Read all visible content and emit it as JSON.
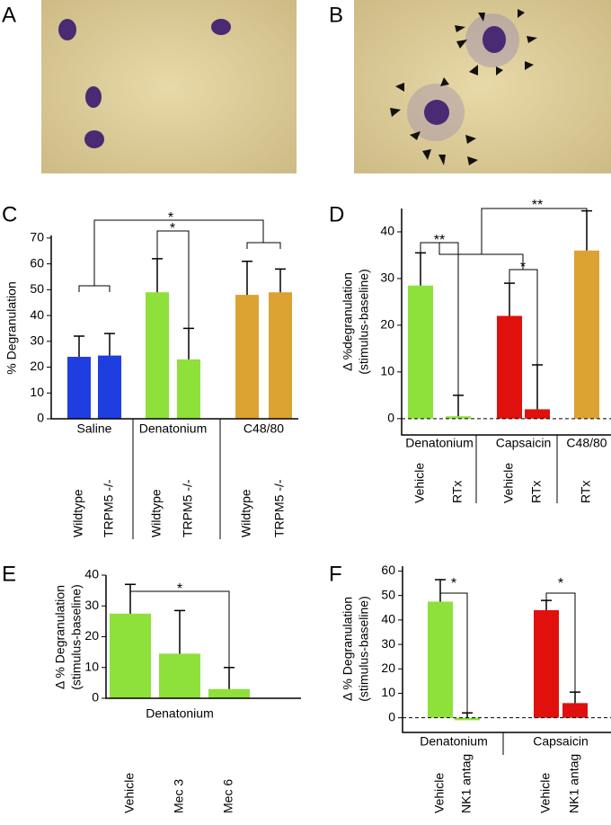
{
  "image_panels": [
    "A",
    "B"
  ],
  "chart_data": [
    {
      "panel": "C",
      "type": "bar",
      "ylabel": [
        "% Degranulation"
      ],
      "ylim": [
        0,
        71
      ],
      "yticks": [
        0,
        10,
        20,
        30,
        40,
        50,
        60,
        70
      ],
      "groups": [
        {
          "label": "Saline",
          "color": "#1f3ee0",
          "categories": [
            "Wildtype",
            "TRPM5 -/-"
          ],
          "values": [
            24,
            24.5
          ],
          "errors": [
            8,
            8.5
          ]
        },
        {
          "label": "Denatonium",
          "color": "#8ee03a",
          "categories": [
            "Wildtype",
            "TRPM5 -/-"
          ],
          "values": [
            49,
            23
          ],
          "errors": [
            13,
            12
          ]
        },
        {
          "label": "C48/80",
          "color": "#dca232",
          "categories": [
            "Wildtype",
            "TRPM5 -/-"
          ],
          "values": [
            48,
            49
          ],
          "errors": [
            13,
            9
          ]
        }
      ],
      "annotations": [
        "*",
        "*"
      ]
    },
    {
      "panel": "D",
      "type": "bar",
      "ylabel": [
        "Δ %degranulation",
        "(stimulus-baseline)"
      ],
      "ylim": [
        -3.5,
        45
      ],
      "yticks": [
        0,
        10,
        20,
        30,
        40
      ],
      "zero_line": true,
      "groups": [
        {
          "label": "Denatonium",
          "color": "#8ee03a",
          "categories": [
            "Vehicle",
            "RTx"
          ],
          "values": [
            28.5,
            0.5
          ],
          "errors": [
            7,
            4.5
          ]
        },
        {
          "label": "Capsaicin",
          "color": "#e0100c",
          "categories": [
            "Vehicle",
            "RTx"
          ],
          "values": [
            22,
            2
          ],
          "errors": [
            7,
            9.5
          ]
        },
        {
          "label": "C48/80",
          "color": "#dca232",
          "categories": [
            "RTx"
          ],
          "values": [
            36
          ],
          "errors": [
            8.5
          ]
        }
      ],
      "annotations": [
        "**",
        "*",
        "**"
      ]
    },
    {
      "panel": "E",
      "type": "bar",
      "ylabel": [
        "Δ % Degranulation",
        "(stimulus-baseline)"
      ],
      "ylim": [
        0,
        40
      ],
      "yticks": [
        0,
        10,
        20,
        30,
        40
      ],
      "groups": [
        {
          "label": "Denatonium",
          "color": "#8ee03a",
          "categories": [
            "Vehicle",
            "Mec 3",
            "Mec 6"
          ],
          "values": [
            27.5,
            14.5,
            3
          ],
          "errors": [
            9.5,
            14,
            7
          ]
        }
      ],
      "annotations": [
        "*"
      ]
    },
    {
      "panel": "F",
      "type": "bar",
      "ylabel": [
        "Δ % Degranulation",
        "(stimulus-baseline)"
      ],
      "ylim": [
        -6,
        62
      ],
      "yticks": [
        0,
        10,
        20,
        30,
        40,
        50,
        60
      ],
      "zero_line": true,
      "groups": [
        {
          "label": "Denatonium",
          "color": "#8ee03a",
          "categories": [
            "Vehicle",
            "NK1 antag"
          ],
          "values": [
            47.5,
            -1
          ],
          "errors": [
            9,
            3
          ]
        },
        {
          "label": "Capsaicin",
          "color": "#e0100c",
          "categories": [
            "Vehicle",
            "NK1 antag"
          ],
          "values": [
            44,
            6
          ],
          "errors": [
            4,
            4.5
          ]
        }
      ],
      "annotations": [
        "*",
        "*"
      ]
    }
  ]
}
